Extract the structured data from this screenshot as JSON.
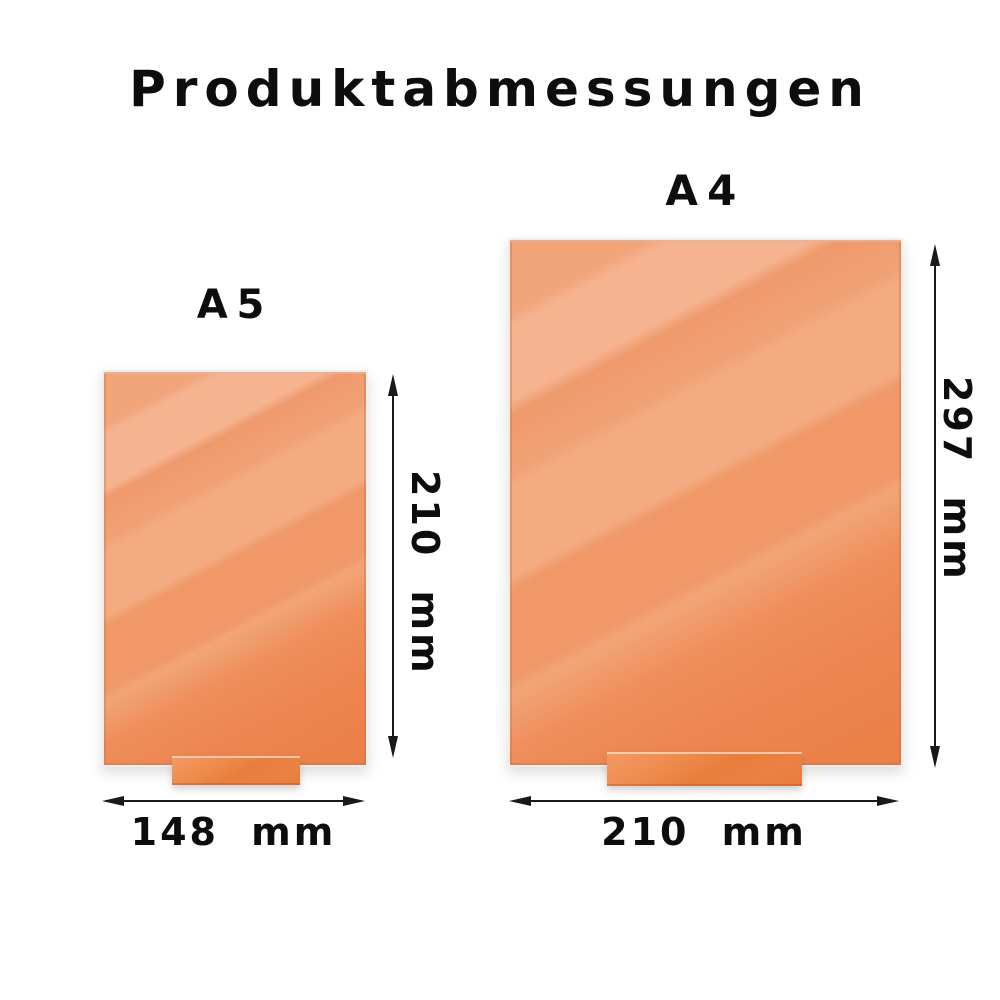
{
  "title": "Produktabmessungen",
  "colors": {
    "background": "#ffffff",
    "panel_light_band": "#f5b390",
    "panel_mid": "#f2a47a",
    "panel_dark_corner": "#ec7f47",
    "base_orange": "#e87d3c",
    "arrow": "#191919",
    "text": "#0d0d0d"
  },
  "panels": [
    {
      "id": "a5",
      "label": "A5",
      "width_label": "148 mm",
      "height_label": "210 mm"
    },
    {
      "id": "a4",
      "label": "A4",
      "width_label": "210 mm",
      "height_label": "297 mm"
    }
  ]
}
